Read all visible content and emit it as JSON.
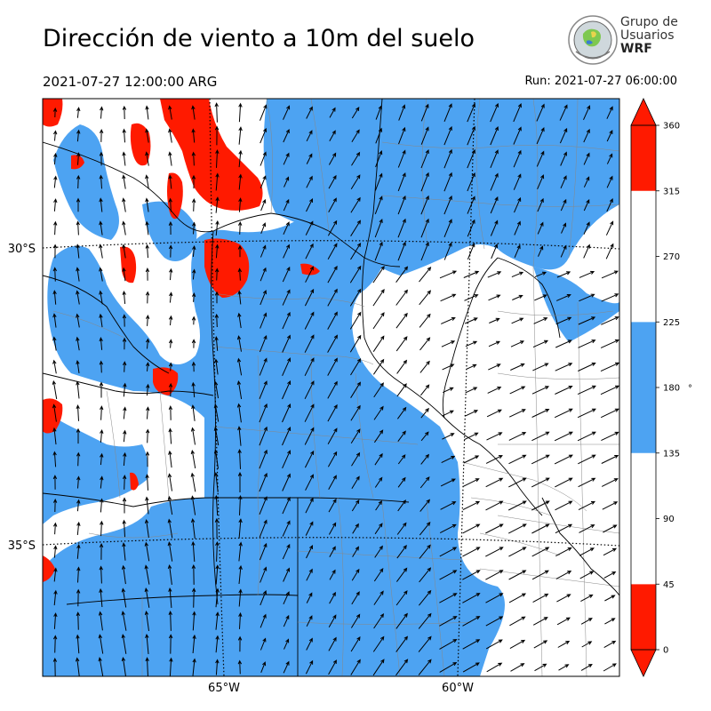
{
  "header": {
    "title": "Dirección de viento a 10m del suelo",
    "valid_time": "2021-07-27 12:00:00 ARG",
    "run_time": "Run: 2021-07-27 06:00:00"
  },
  "logo": {
    "line1": "Grupo de",
    "line2": "Usuarios",
    "line3": "WRF"
  },
  "map": {
    "lat_labels": [
      {
        "text": "30°S",
        "lat": -30
      },
      {
        "text": "35°S",
        "lat": -35
      }
    ],
    "lon_labels": [
      {
        "text": "65°W",
        "lon": -65
      },
      {
        "text": "60°W",
        "lon": -60
      }
    ],
    "colors": {
      "north": "#ff1a00",
      "south": "#4da3f2",
      "other": "#ffffff"
    }
  },
  "colorbar": {
    "unit": "°",
    "ticks": [
      "0",
      "45",
      "90",
      "135",
      "180",
      "225",
      "270",
      "315",
      "360"
    ],
    "bands": [
      {
        "from": 0,
        "to": 45,
        "color": "#ff1a00"
      },
      {
        "from": 45,
        "to": 135,
        "color": "#ffffff"
      },
      {
        "from": 135,
        "to": 225,
        "color": "#4da3f2"
      },
      {
        "from": 225,
        "to": 315,
        "color": "#ffffff"
      },
      {
        "from": 315,
        "to": 360,
        "color": "#ff1a00"
      }
    ]
  }
}
